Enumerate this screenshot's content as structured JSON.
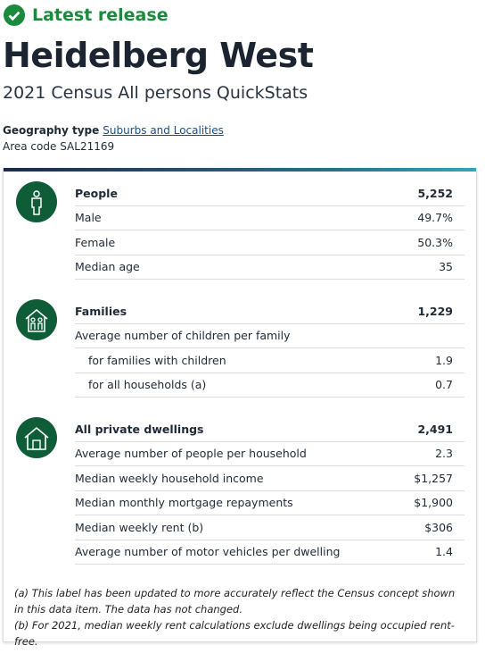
{
  "header": {
    "status": "Latest release",
    "title": "Heidelberg West",
    "subtitle": "2021 Census All persons QuickStats",
    "geography_label": "Geography type",
    "geography_value": "Suburbs and Localities",
    "area_label": "Area code",
    "area_value": "SAL21169"
  },
  "sections": [
    {
      "title": "People",
      "value": "5,252",
      "rows": [
        {
          "label": "Male",
          "value": "49.7%"
        },
        {
          "label": "Female",
          "value": "50.3%"
        },
        {
          "label": "Median age",
          "value": "35"
        }
      ]
    },
    {
      "title": "Families",
      "value": "1,229",
      "rows": [
        {
          "label": "Average number of children per family",
          "value": null
        },
        {
          "label": "for families with children",
          "value": "1.9"
        },
        {
          "label": "for all households (a)",
          "value": "0.7"
        }
      ]
    },
    {
      "title": "All private dwellings",
      "value": "2,491",
      "rows": [
        {
          "label": "Average number of people per household",
          "value": "2.3"
        },
        {
          "label": "Median weekly household income",
          "value": "$1,257"
        },
        {
          "label": "Median monthly mortgage repayments",
          "value": "$1,900"
        },
        {
          "label": "Median weekly rent (b)",
          "value": "$306"
        },
        {
          "label": "Average number of motor vehicles per dwelling",
          "value": "1.4"
        }
      ]
    }
  ],
  "footnotes": [
    "(a) This label has been updated to more accurately reflect the Census concept shown in this data item. The data has not changed.",
    "(b) For 2021, median weekly rent calculations exclude dwellings being occupied rent-free."
  ]
}
